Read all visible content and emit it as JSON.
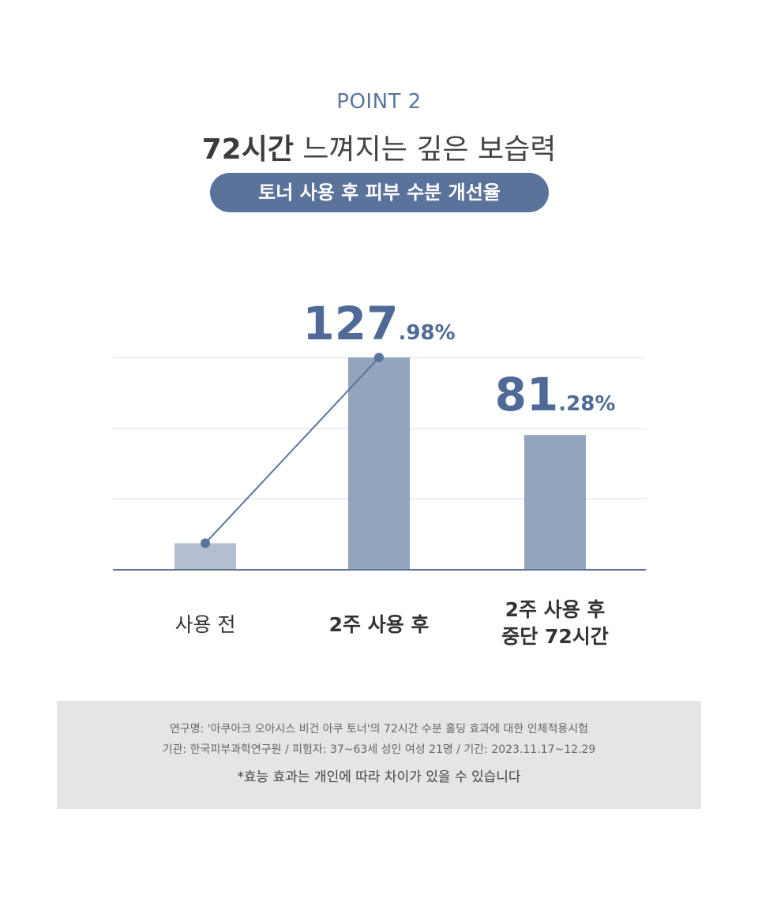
{
  "header": {
    "point_label": "POINT 2",
    "title_strong": "72시간",
    "title_rest": " 느껴지는 깊은 보습력",
    "pill_label": "토너 사용 후 피부 수분 개선율"
  },
  "colors": {
    "accent": "#5b739b",
    "bar": "#93a4bd",
    "bar_light": "#b3bfd1",
    "grid": "#d7dde6",
    "label_blue": "#4f6a96"
  },
  "chart_data": {
    "type": "bar",
    "categories": [
      "사용 전",
      "2주 사용 후",
      "2주 사용 후 중단 72시간"
    ],
    "values": [
      16,
      127.98,
      81.28
    ],
    "value_labels": [
      null,
      {
        "int": "127",
        "dec": ".98%"
      },
      {
        "int": "81",
        "dec": ".28%"
      }
    ],
    "overlay_line": [
      16,
      127.98
    ],
    "ylim": [
      0,
      140
    ],
    "grid": true
  },
  "xlabels": [
    {
      "line1": "사용 전",
      "line2": ""
    },
    {
      "line1": "2주 사용 후",
      "line2": ""
    },
    {
      "line1": "2주 사용 후",
      "line2": "중단 72시간"
    }
  ],
  "footnote": {
    "line1": "연구명: '아쿠아크 오아시스 비건 아쿠 토너'의 72시간 수분 홀딩 효과에 대한 인체적용시험",
    "line2": "기관: 한국피부과학연구원 / 피험자: 37~63세 성인 여성 21명 / 기간: 2023.11.17~12.29",
    "line3": "*효능 효과는 개인에 따라 차이가 있을 수 있습니다"
  }
}
